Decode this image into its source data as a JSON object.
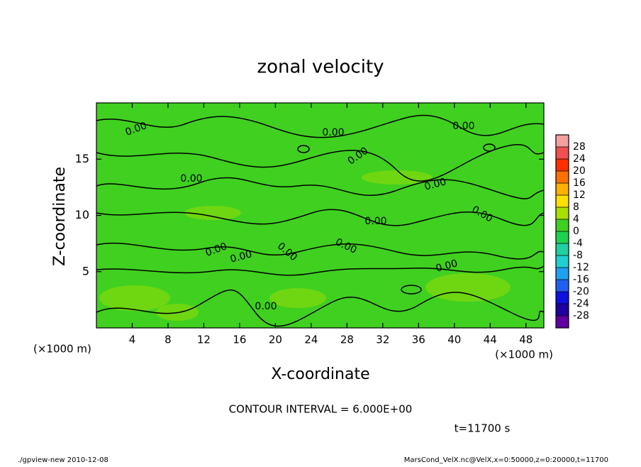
{
  "chart_data": {
    "type": "contour",
    "title": "zonal velocity",
    "x_label": "X-coordinate",
    "y_label": "Z-coordinate",
    "x_unit": "(×1000 m)",
    "xlim": [
      0,
      50
    ],
    "xticks": [
      4,
      8,
      12,
      16,
      20,
      24,
      28,
      32,
      36,
      40,
      44,
      48
    ],
    "ylim": [
      0,
      20
    ],
    "yticks": [
      5,
      10,
      15
    ],
    "colorbar": {
      "levels": [
        -32,
        -28,
        -24,
        -20,
        -16,
        -12,
        -8,
        -4,
        0,
        4,
        8,
        12,
        16,
        20,
        24,
        28,
        32
      ],
      "colors": [
        "#6000a0",
        "#2000a0",
        "#1010e0",
        "#2060f0",
        "#20a0f0",
        "#20d0d0",
        "#20d0a0",
        "#20d050",
        "#40d020",
        "#a8e000",
        "#ffe000",
        "#ffb000",
        "#ff7000",
        "#ff3000",
        "#f05050",
        "#f4a0a0"
      ],
      "ticks": [
        -28,
        -24,
        -20,
        -16,
        -12,
        -8,
        -4,
        0,
        4,
        8,
        12,
        16,
        20,
        24,
        28
      ]
    },
    "contour_labels": [
      "0.00",
      "0.00",
      "0.00",
      "0.00",
      "0.00",
      "0.00",
      "0.00",
      "0.00",
      "0.00",
      "0.00",
      "0.00",
      "0.00",
      "0.00",
      "0.00"
    ],
    "contour_interval": "CONTOUR INTERVAL = 6.000E+00",
    "time_label": "t=11700 s",
    "footer_left": "./gpview-new  2010-12-08",
    "footer_right": "MarsCond_VelX.nc@VelX,x=0:50000,z=0:20000,t=11700"
  }
}
